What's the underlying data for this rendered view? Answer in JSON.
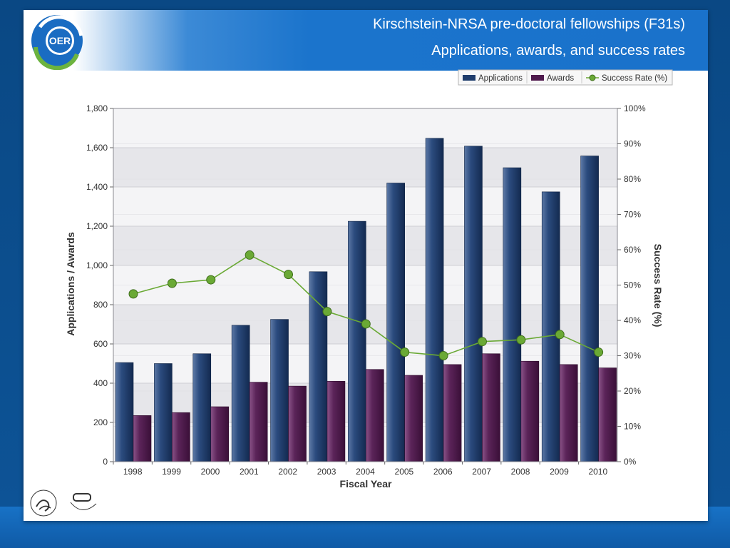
{
  "header": {
    "title": "Kirschstein-NRSA pre-doctoral fellowships (F31s)",
    "subtitle": "Applications, awards, and success rates",
    "logo_text": "OER"
  },
  "colors": {
    "applications": "#1f3d6c",
    "awards": "#4f1a4d",
    "success_rate": "#6aa935"
  },
  "chart_data": {
    "type": "bar",
    "categories": [
      "1998",
      "1999",
      "2000",
      "2001",
      "2002",
      "2003",
      "2004",
      "2005",
      "2006",
      "2007",
      "2008",
      "2009",
      "2010"
    ],
    "series": [
      {
        "name": "Applications",
        "type": "bar",
        "axis": "left",
        "values": [
          505,
          500,
          550,
          695,
          725,
          968,
          1225,
          1420,
          1648,
          1608,
          1498,
          1375,
          1558
        ]
      },
      {
        "name": "Awards",
        "type": "bar",
        "axis": "left",
        "values": [
          235,
          250,
          280,
          405,
          385,
          410,
          470,
          440,
          495,
          550,
          512,
          495,
          478
        ]
      },
      {
        "name": "Success Rate  (%)",
        "type": "line",
        "axis": "right",
        "values": [
          47.5,
          50.5,
          51.5,
          58.5,
          53,
          42.5,
          39,
          31,
          30,
          34,
          34.5,
          36,
          31
        ]
      }
    ],
    "xlabel": "Fiscal Year",
    "ylabel": "Applications / Awards",
    "y2label": "Success Rate  (%)",
    "ylim": [
      0,
      1800
    ],
    "y2lim": [
      0,
      100
    ],
    "yticks": [
      0,
      200,
      400,
      600,
      800,
      1000,
      1200,
      1400,
      1600,
      1800
    ],
    "yticklabels": [
      "0",
      "200",
      "400",
      "600",
      "800",
      "1,000",
      "1,200",
      "1,400",
      "1,600",
      "1,800"
    ],
    "y2ticks": [
      0,
      10,
      20,
      30,
      40,
      50,
      60,
      70,
      80,
      90,
      100
    ],
    "y2ticklabels": [
      "0%",
      "10%",
      "20%",
      "30%",
      "40%",
      "50%",
      "60%",
      "70%",
      "80%",
      "90%",
      "100%"
    ],
    "legend": {
      "placement": "top-right",
      "entries": [
        "Applications",
        "Awards",
        "Success Rate  (%)"
      ]
    },
    "grid": true
  }
}
